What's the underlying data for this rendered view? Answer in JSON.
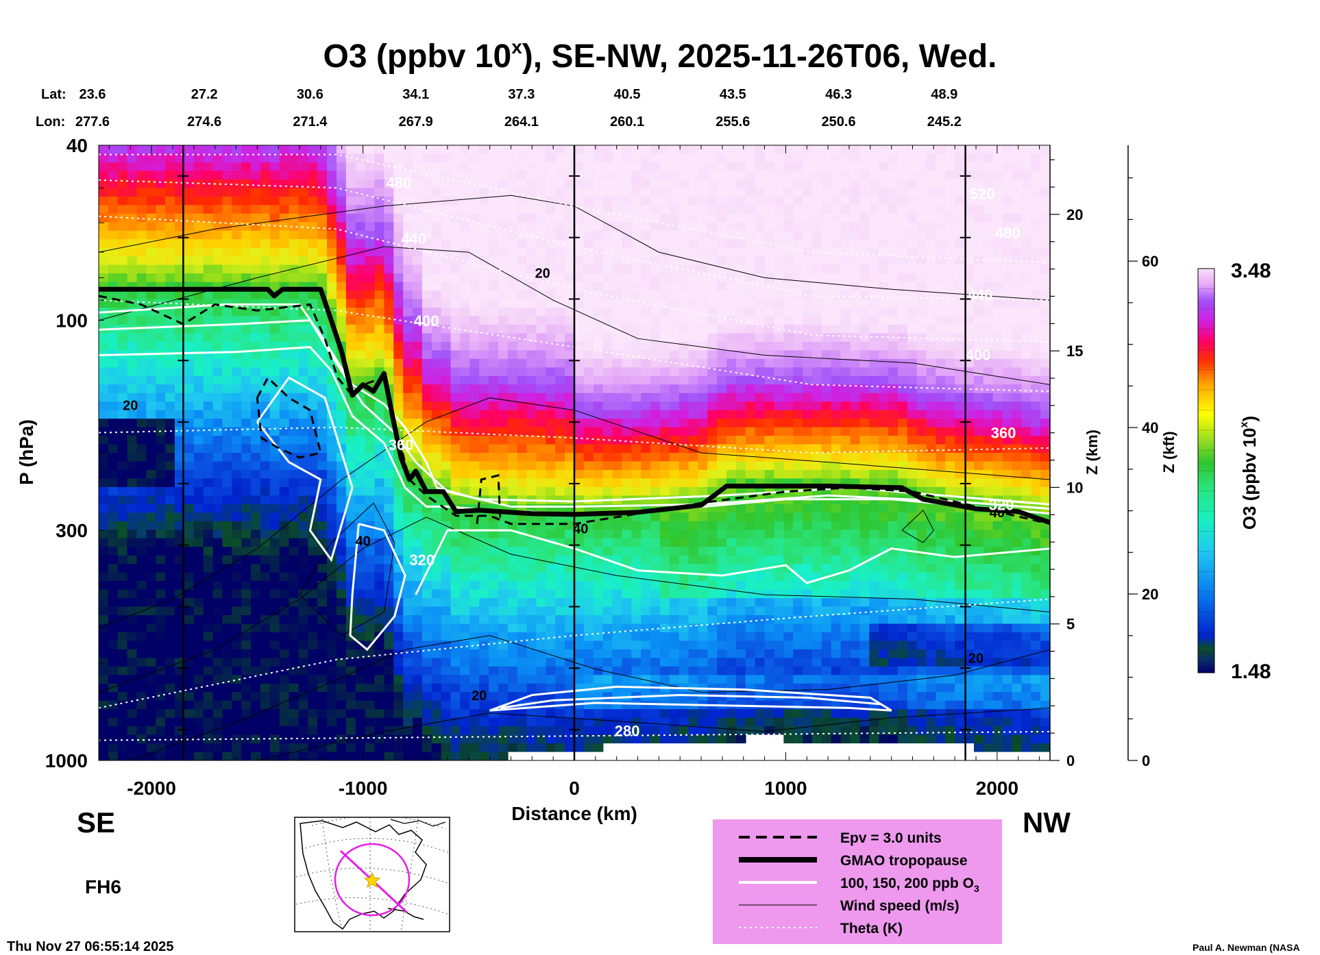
{
  "chart_data": {
    "type": "heatmap",
    "title": "O3 (ppbv 10x), SE-NW, 2025-11-26T06, Wed.",
    "title_parts": {
      "before": "O3 (ppbv 10",
      "sup": "x",
      "after": "), SE-NW, 2025-11-26T06, Wed."
    },
    "xlabel": "Distance (km)",
    "ylabel": "P (hPa)",
    "xlim": [
      -2250,
      2250
    ],
    "ylim_hpa": [
      1000,
      40
    ],
    "y_scale": "log",
    "x_ticks": [
      {
        "value": -2000,
        "label": "-2000"
      },
      {
        "value": -1000,
        "label": "-1000"
      },
      {
        "value": 0,
        "label": "0"
      },
      {
        "value": 1000,
        "label": "1000"
      },
      {
        "value": 2000,
        "label": "2000"
      }
    ],
    "y_ticks": [
      {
        "value": 40,
        "label": "40"
      },
      {
        "value": 100,
        "label": "100"
      },
      {
        "value": 300,
        "label": "300"
      },
      {
        "value": 1000,
        "label": "1000"
      }
    ],
    "lat_label": "Lat:",
    "lon_label": "Lon:",
    "lat_lon": [
      {
        "x": -2250,
        "lat": "23.6",
        "lon": "277.6"
      },
      {
        "x": -1750,
        "lat": "27.2",
        "lon": "274.6"
      },
      {
        "x": -1250,
        "lat": "30.6",
        "lon": "271.4"
      },
      {
        "x": -750,
        "lat": "34.1",
        "lon": "267.9"
      },
      {
        "x": -250,
        "lat": "37.3",
        "lon": "264.1"
      },
      {
        "x": 250,
        "lat": "40.5",
        "lon": "260.1"
      },
      {
        "x": 750,
        "lat": "43.5",
        "lon": "255.6"
      },
      {
        "x": 1250,
        "lat": "46.3",
        "lon": "250.6"
      },
      {
        "x": 1750,
        "lat": "48.9",
        "lon": "245.2"
      }
    ],
    "z_km_axis": {
      "label": "Z (km)",
      "ticks": [
        {
          "value": 0,
          "label": "0"
        },
        {
          "value": 5,
          "label": "5"
        },
        {
          "value": 10,
          "label": "10"
        },
        {
          "value": 15,
          "label": "15"
        },
        {
          "value": 20,
          "label": "20"
        }
      ]
    },
    "z_kft_axis": {
      "label": "Z (kft)",
      "ticks": [
        {
          "value": 0,
          "label": "0"
        },
        {
          "value": 20,
          "label": "20"
        },
        {
          "value": 40,
          "label": "40"
        },
        {
          "value": 60,
          "label": "60"
        }
      ]
    },
    "colorbar": {
      "label": "O3 (ppbv 10x)",
      "label_parts": {
        "before": "O3 (ppbv 10",
        "sup": "x",
        "after": ")"
      },
      "min": 1.48,
      "max": 3.48,
      "min_label": "1.48",
      "max_label": "3.48"
    },
    "vertical_lines_km": [
      -1850,
      0,
      1850
    ],
    "tropopause_hpa": [
      {
        "x": -2250,
        "p": 85
      },
      {
        "x": -1450,
        "p": 85
      },
      {
        "x": -1420,
        "p": 88
      },
      {
        "x": -1380,
        "p": 85
      },
      {
        "x": -1200,
        "p": 85
      },
      {
        "x": -1150,
        "p": 100
      },
      {
        "x": -1100,
        "p": 118
      },
      {
        "x": -1050,
        "p": 148
      },
      {
        "x": -1000,
        "p": 140
      },
      {
        "x": -950,
        "p": 145
      },
      {
        "x": -900,
        "p": 132
      },
      {
        "x": -860,
        "p": 165
      },
      {
        "x": -820,
        "p": 205
      },
      {
        "x": -780,
        "p": 230
      },
      {
        "x": -750,
        "p": 220
      },
      {
        "x": -700,
        "p": 245
      },
      {
        "x": -620,
        "p": 245
      },
      {
        "x": -560,
        "p": 272
      },
      {
        "x": -450,
        "p": 270
      },
      {
        "x": -350,
        "p": 272
      },
      {
        "x": -200,
        "p": 275
      },
      {
        "x": 0,
        "p": 276
      },
      {
        "x": 300,
        "p": 273
      },
      {
        "x": 600,
        "p": 263
      },
      {
        "x": 720,
        "p": 238
      },
      {
        "x": 1000,
        "p": 238
      },
      {
        "x": 1200,
        "p": 238
      },
      {
        "x": 1550,
        "p": 240
      },
      {
        "x": 1650,
        "p": 255
      },
      {
        "x": 1900,
        "p": 268
      },
      {
        "x": 2100,
        "p": 272
      },
      {
        "x": 2250,
        "p": 288
      }
    ],
    "epv3_hpa": [
      {
        "x": -2250,
        "p": 88
      },
      {
        "x": -2050,
        "p": 92
      },
      {
        "x": -1850,
        "p": 102
      },
      {
        "x": -1700,
        "p": 92
      },
      {
        "x": -1500,
        "p": 95
      },
      {
        "x": -1250,
        "p": 92
      },
      {
        "x": -1180,
        "p": 110
      },
      {
        "x": -1120,
        "p": 135
      },
      {
        "x": -1050,
        "p": 148
      },
      {
        "x": -1000,
        "p": 140
      },
      {
        "x": -900,
        "p": 135
      },
      {
        "x": -850,
        "p": 170
      },
      {
        "x": -780,
        "p": 230
      },
      {
        "x": -700,
        "p": 250
      },
      {
        "x": -560,
        "p": 278
      },
      {
        "x": -400,
        "p": 278
      },
      {
        "x": -300,
        "p": 290
      },
      {
        "x": 0,
        "p": 290
      },
      {
        "x": 300,
        "p": 275
      },
      {
        "x": 600,
        "p": 260
      },
      {
        "x": 1000,
        "p": 245
      },
      {
        "x": 1300,
        "p": 240
      },
      {
        "x": 1600,
        "p": 245
      },
      {
        "x": 1900,
        "p": 265
      },
      {
        "x": 2250,
        "p": 290
      }
    ],
    "theta_levels": [
      {
        "label": "280",
        "p": [
          900,
          890,
          880,
          870,
          860
        ]
      },
      {
        "label": "320",
        "p": [
          760,
          590,
          520,
          470,
          430
        ]
      },
      {
        "label": "360",
        "p": [
          180,
          175,
          185,
          200,
          195
        ]
      },
      {
        "label": "400",
        "p": [
          90,
          95,
          115,
          140,
          145
        ]
      },
      {
        "label": "440",
        "p": [
          58,
          62,
          85,
          108,
          112
        ]
      },
      {
        "label": "480",
        "p": [
          48,
          50,
          68,
          88,
          90
        ]
      },
      {
        "label": "520",
        "p": [
          42,
          42,
          55,
          70,
          74
        ]
      }
    ],
    "contour_labels": [
      {
        "text": "20",
        "x": -2100,
        "p": 160,
        "kind": "wind"
      },
      {
        "text": "20",
        "x": -150,
        "p": 80,
        "kind": "wind"
      },
      {
        "text": "20",
        "x": -450,
        "p": 730,
        "kind": "wind"
      },
      {
        "text": "20",
        "x": 1900,
        "p": 600,
        "kind": "wind"
      },
      {
        "text": "40",
        "x": -1000,
        "p": 325,
        "kind": "wind"
      },
      {
        "text": "40",
        "x": 30,
        "p": 305,
        "kind": "wind"
      },
      {
        "text": "40",
        "x": 2000,
        "p": 280,
        "kind": "wind"
      },
      {
        "text": "480",
        "x": -830,
        "p": 50,
        "kind": "theta"
      },
      {
        "text": "440",
        "x": -760,
        "p": 67,
        "kind": "theta"
      },
      {
        "text": "400",
        "x": -700,
        "p": 103,
        "kind": "theta"
      },
      {
        "text": "360",
        "x": -820,
        "p": 197,
        "kind": "theta"
      },
      {
        "text": "320",
        "x": -720,
        "p": 360,
        "kind": "theta"
      },
      {
        "text": "280",
        "x": 250,
        "p": 880,
        "kind": "theta"
      },
      {
        "text": "520",
        "x": 1930,
        "p": 53,
        "kind": "theta"
      },
      {
        "text": "480",
        "x": 2050,
        "p": 65,
        "kind": "theta"
      },
      {
        "text": "440",
        "x": 1920,
        "p": 90,
        "kind": "theta"
      },
      {
        "text": "400",
        "x": 1910,
        "p": 123,
        "kind": "theta"
      },
      {
        "text": "360",
        "x": 2030,
        "p": 185,
        "kind": "theta"
      },
      {
        "text": "320",
        "x": 2020,
        "p": 270,
        "kind": "theta"
      }
    ]
  },
  "labels": {
    "left_direction": "SE",
    "right_direction": "NW",
    "forecast_hour": "FH6",
    "timestamp": "Thu Nov 27 06:55:14 2025",
    "credit": "Paul A. Newman (NASA"
  },
  "legend": [
    {
      "style": "dashed",
      "label": "Epv = 3.0 units"
    },
    {
      "style": "thick",
      "label": "GMAO tropopause"
    },
    {
      "style": "white",
      "label": "100, 150, 200 ppb O",
      "sub": "3"
    },
    {
      "style": "thin",
      "label": "Wind speed (m/s)"
    },
    {
      "style": "dotted",
      "label": "Theta (K)"
    }
  ],
  "colors": {
    "legend_bg": "#ee99ee",
    "map_track": "#e61ee6",
    "map_star": "#ffd700",
    "tropopause": "#000000",
    "theta_line": "#ffffff"
  }
}
